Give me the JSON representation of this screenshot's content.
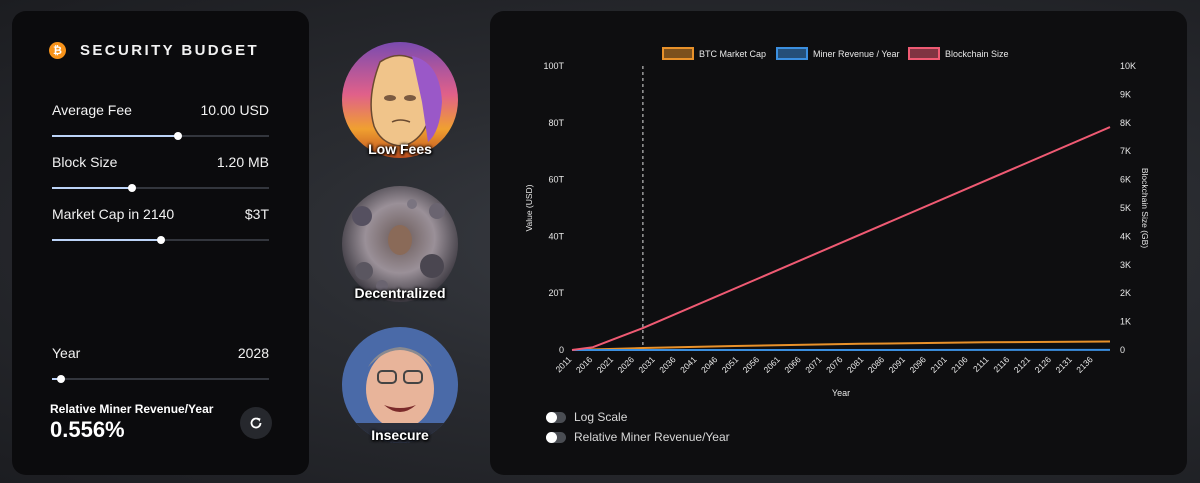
{
  "panel": {
    "title": "SECURITY BUDGET",
    "btc_symbol": "₿",
    "controls": [
      {
        "label": "Average Fee",
        "value": "10.00 USD",
        "fraction": 0.58
      },
      {
        "label": "Block Size",
        "value": "1.20 MB",
        "fraction": 0.37
      },
      {
        "label": "Market Cap in 2140",
        "value": "$3T",
        "fraction": 0.5
      }
    ],
    "year": {
      "label": "Year",
      "value": "2028",
      "fraction": 0.04
    },
    "relative_label": "Relative Miner Revenue/Year",
    "relative_value": "0.556%"
  },
  "memes": [
    {
      "label": "Low Fees"
    },
    {
      "label": "Decentralized"
    },
    {
      "label": "Insecure"
    }
  ],
  "toggles": [
    {
      "label": "Log Scale",
      "on": false
    },
    {
      "label": "Relative Miner Revenue/Year",
      "on": false
    }
  ],
  "colors": {
    "market_cap": "#e8912a",
    "miner_revenue": "#3b8fe0",
    "blockchain_size": "#ef5a73",
    "slider_fill": "#bcd3f7"
  },
  "chart_data": {
    "type": "line",
    "xlabel": "Year",
    "ylabel": "Value (USD)",
    "y2label": "Blockchain Size (GB)",
    "legend_position": "top",
    "x_ticks": [
      "2011",
      "2016",
      "2021",
      "2026",
      "2031",
      "2036",
      "2041",
      "2046",
      "2051",
      "2056",
      "2061",
      "2066",
      "2071",
      "2076",
      "2081",
      "2086",
      "2091",
      "2096",
      "2101",
      "2106",
      "2111",
      "2116",
      "2121",
      "2126",
      "2131",
      "2136"
    ],
    "y_ticks": [
      "0",
      "20T",
      "40T",
      "60T",
      "80T",
      "100T"
    ],
    "y2_ticks": [
      "0",
      "1K",
      "2K",
      "3K",
      "4K",
      "5K",
      "6K",
      "7K",
      "8K",
      "9K",
      "10K"
    ],
    "xlim": [
      2011,
      2140
    ],
    "ylim": [
      0,
      100
    ],
    "y2lim": [
      0,
      10000
    ],
    "marker_year": 2028,
    "series": [
      {
        "name": "BTC Market Cap",
        "axis": "left",
        "key": "market_cap",
        "x": [
          2011,
          2021,
          2028,
          2050,
          2080,
          2110,
          2140
        ],
        "y": [
          0,
          0.4,
          0.7,
          1.4,
          2.2,
          2.7,
          3.0
        ]
      },
      {
        "name": "Miner Revenue / Year",
        "axis": "left",
        "key": "miner_revenue",
        "x": [
          2011,
          2140
        ],
        "y": [
          0,
          0.02
        ]
      },
      {
        "name": "Blockchain Size",
        "axis": "right",
        "key": "blockchain_size",
        "x": [
          2011,
          2016,
          2021,
          2028,
          2140
        ],
        "y": [
          0,
          100,
          380,
          770,
          7850
        ]
      }
    ]
  }
}
